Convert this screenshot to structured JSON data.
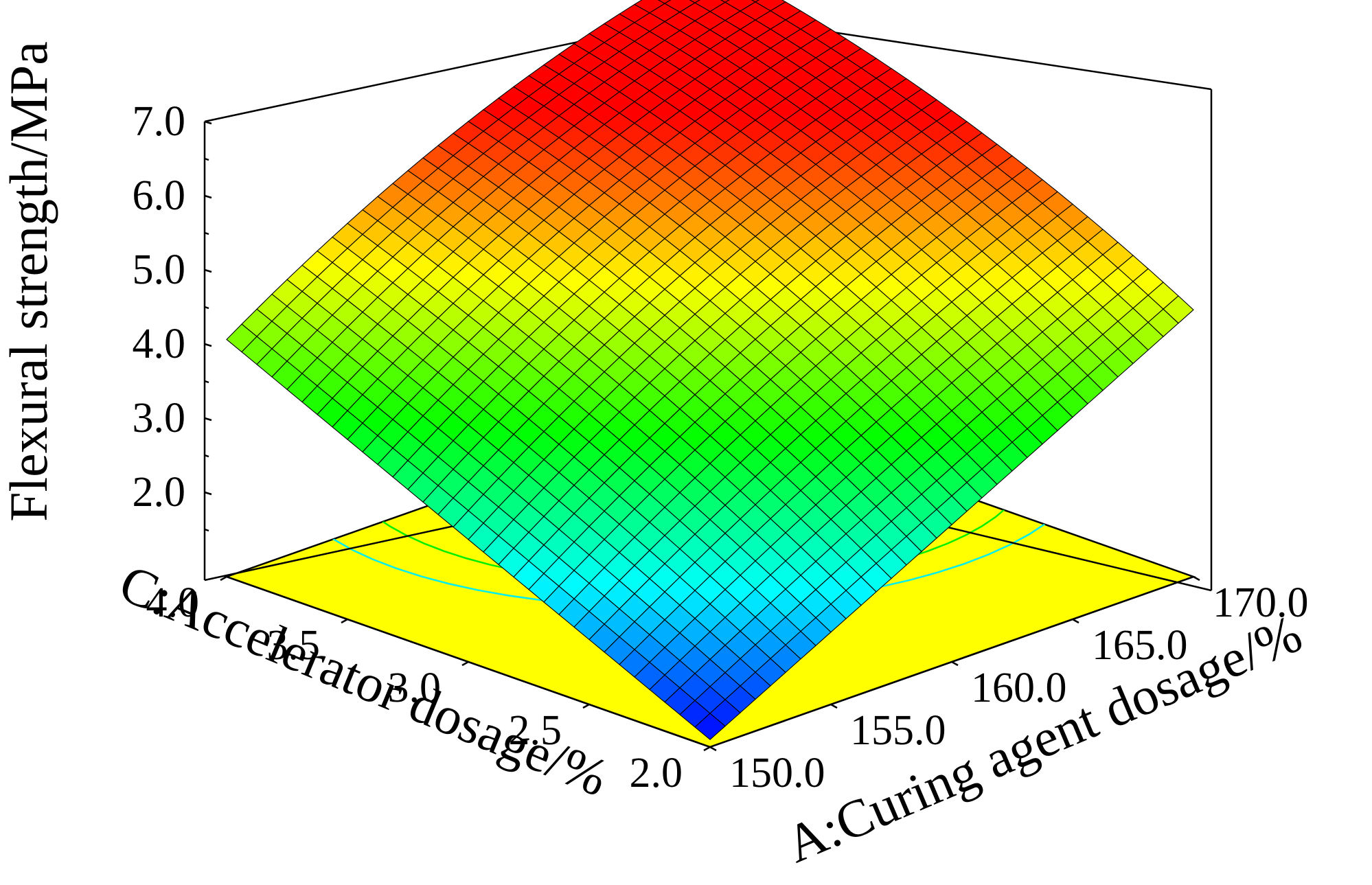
{
  "chart_data": {
    "type": "surface3d",
    "title": "",
    "xlabel": "A:Curing agent dosage/%",
    "ylabel": "C:Accelerator dosage/%",
    "zlabel": "Flexural strength/MPa",
    "x_ticks": [
      "150.0",
      "155.0",
      "160.0",
      "165.0",
      "170.0"
    ],
    "y_ticks": [
      "2.0",
      "2.5",
      "3.0",
      "3.5",
      "4.0"
    ],
    "z_ticks": [
      "2.0",
      "3.0",
      "4.0",
      "5.0",
      "6.0",
      "7.0"
    ],
    "xlim": [
      150,
      170
    ],
    "ylim": [
      2,
      4
    ],
    "zlim": [
      1,
      7
    ],
    "grid_resolution": 32,
    "surface_corners": {
      "A150_C2.0": 1.1,
      "A170_C2.0": 4.6,
      "A150_C4.0": 4.2,
      "A170_C4.0": 6.1
    },
    "surface_peak": {
      "A": 166,
      "C": 3.7,
      "value": 6.1
    },
    "floor_contour_colors": [
      "#ff0000",
      "#ff8800",
      "#ffcc00",
      "#88ff00",
      "#00ee00",
      "#00eeee"
    ],
    "floor_color": "#ffff00",
    "colormap": [
      "#0000ff",
      "#00ffff",
      "#00ff00",
      "#ffff00",
      "#ff0000"
    ]
  }
}
